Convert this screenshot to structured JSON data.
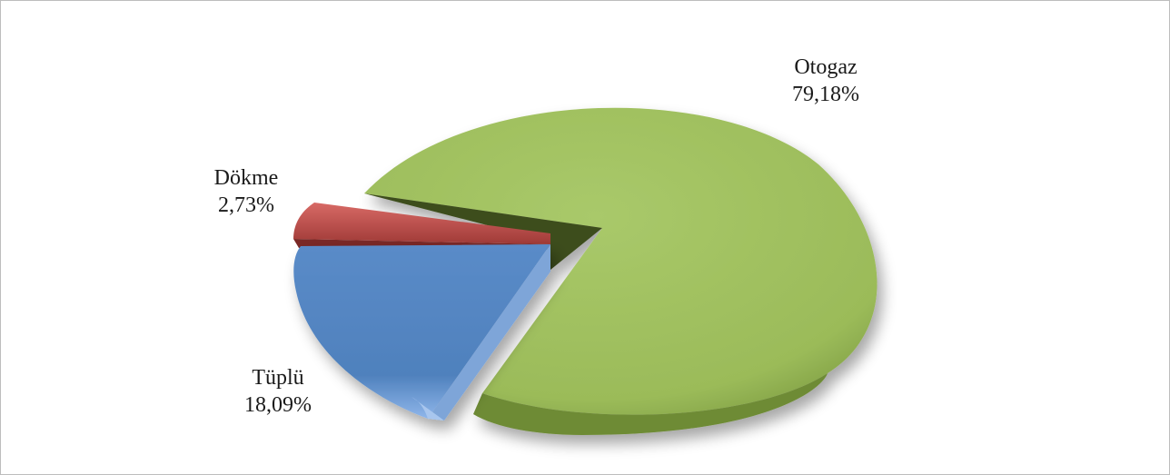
{
  "chart_data": {
    "type": "pie",
    "title": "",
    "three_d": true,
    "exploded": true,
    "series": [
      {
        "name": "Otogaz",
        "value": 79.18,
        "label": "79,18%",
        "color": "#9bbb59"
      },
      {
        "name": "Tüplü",
        "value": 18.09,
        "label": "18,09%",
        "color": "#4f81bd"
      },
      {
        "name": "Dökme",
        "value": 2.73,
        "label": "2,73%",
        "color": "#c0504d"
      }
    ],
    "legend": "none"
  }
}
